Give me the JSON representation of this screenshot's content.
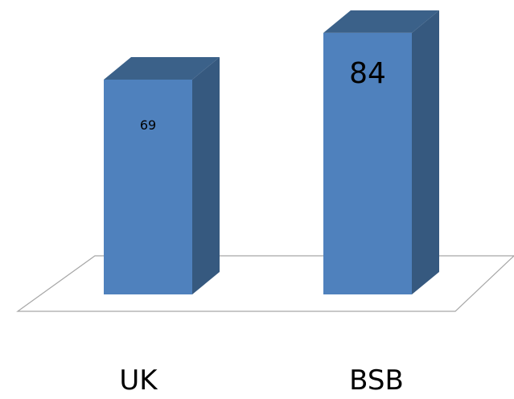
{
  "chart_data": {
    "type": "bar",
    "title": "",
    "xlabel": "",
    "ylabel": "",
    "categories": [
      "UK",
      "BSB"
    ],
    "values": [
      69,
      84
    ],
    "value_labels": [
      "69",
      "84"
    ],
    "ylim": [
      0,
      100
    ],
    "grid": false,
    "style": "3d-column",
    "colors": {
      "front": "#4f81bd",
      "side": "#36597f",
      "top": "#3b6189"
    }
  }
}
